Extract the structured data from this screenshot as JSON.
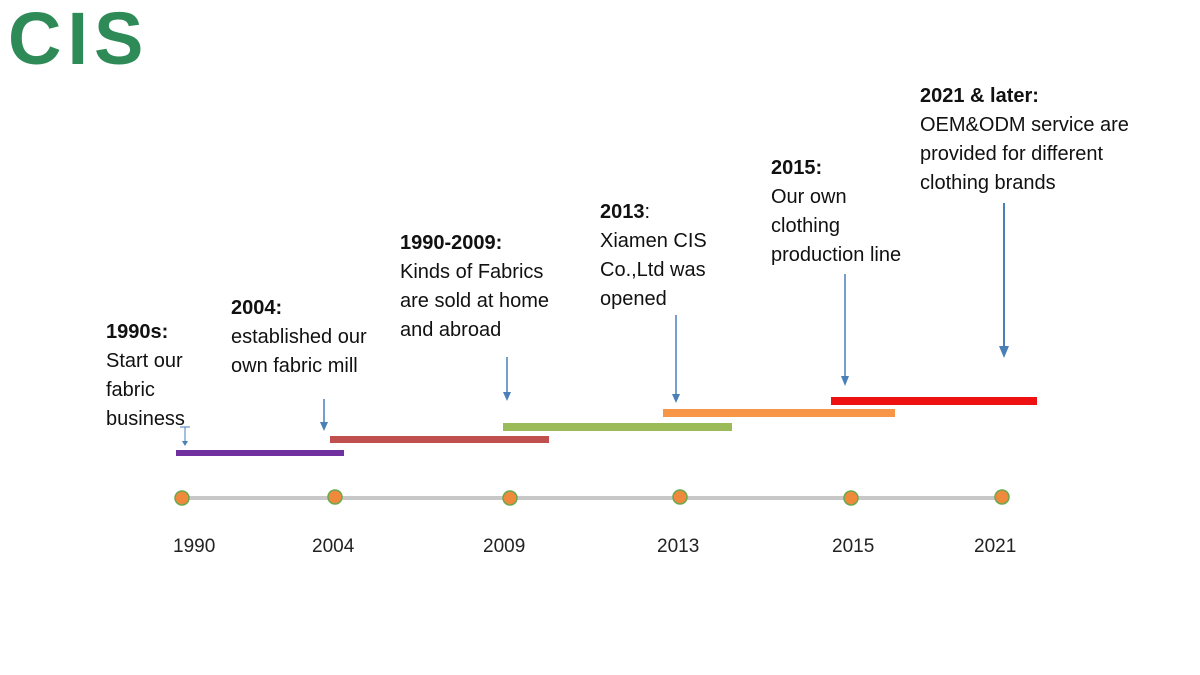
{
  "logo": {
    "text": "CIS",
    "color": "#2e8b57"
  },
  "timeline": {
    "axis_color": "#c8c8c8",
    "dot_color": "#ef8a3c",
    "dot_stroke": "#6aa84f",
    "arrow_color": "#4a7fb8",
    "years": [
      "1990",
      "2004",
      "2009",
      "2013",
      "2015",
      "2021"
    ]
  },
  "milestones": [
    {
      "head": "1990s:",
      "head_suffix": "",
      "body": "Start our\nfabric\nbusiness"
    },
    {
      "head": "2004:",
      "head_suffix": "",
      "body": "established our\nown fabric mill"
    },
    {
      "head": "1990-2009:",
      "head_suffix": "",
      "body": "Kinds of Fabrics\nare sold at home\nand abroad"
    },
    {
      "head": "2013",
      "head_suffix": ":",
      "body": "Xiamen CIS\nCo.,Ltd was\nopened"
    },
    {
      "head": "2015:",
      "head_suffix": "",
      "body": "Our own\nclothing\nproduction line"
    },
    {
      "head": "2021 & later:",
      "head_suffix": "",
      "body": "OEM&ODM service are\nprovided for different\nclothing brands"
    }
  ],
  "bars": [
    {
      "color": "#7030a0"
    },
    {
      "color": "#c0504d"
    },
    {
      "color": "#9bbb59"
    },
    {
      "color": "#f79646"
    },
    {
      "color": "#ee1111"
    }
  ]
}
